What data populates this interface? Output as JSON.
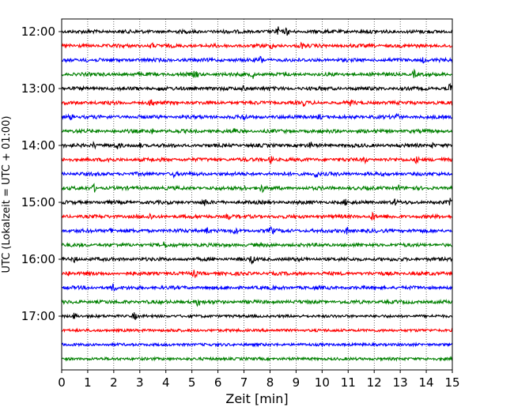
{
  "chart_data": {
    "type": "line",
    "title": "",
    "xlabel": "Zeit  [min]",
    "ylabel": "UTC (Lokalzeit = UTC + 01:00)",
    "xlim": [
      0,
      15
    ],
    "x_ticks": [
      "0",
      "1",
      "2",
      "3",
      "4",
      "5",
      "6",
      "7",
      "8",
      "9",
      "10",
      "11",
      "12",
      "13",
      "14",
      "15"
    ],
    "y_tick_labels": [
      "12:00",
      "13:00",
      "14:00",
      "15:00",
      "16:00",
      "17:00"
    ],
    "grid": "vertical dotted",
    "trace_interval_min": 15,
    "colors": [
      "#000000",
      "#ff0000",
      "#0000ff",
      "#008000"
    ],
    "series": [
      {
        "start": "12:00",
        "color": "#000000",
        "events": [
          [
            8.3,
            5
          ],
          [
            8.65,
            4
          ]
        ]
      },
      {
        "start": "12:15",
        "color": "#ff0000",
        "events": [
          [
            3.45,
            3
          ],
          [
            8.1,
            2.5
          ],
          [
            9.2,
            3
          ]
        ]
      },
      {
        "start": "12:30",
        "color": "#0000ff",
        "events": [
          [
            0.9,
            3
          ],
          [
            7.65,
            4
          ],
          [
            13.9,
            3
          ]
        ]
      },
      {
        "start": "12:45",
        "color": "#008000",
        "events": [
          [
            5.15,
            5
          ],
          [
            7.35,
            4
          ],
          [
            13.55,
            4
          ]
        ]
      },
      {
        "start": "13:00",
        "color": "#000000",
        "events": [
          [
            3.8,
            3
          ],
          [
            7.0,
            3
          ],
          [
            14.9,
            5
          ]
        ]
      },
      {
        "start": "13:15",
        "color": "#ff0000",
        "events": [
          [
            3.45,
            5
          ],
          [
            9.3,
            3
          ],
          [
            11.1,
            3
          ]
        ]
      },
      {
        "start": "13:30",
        "color": "#0000ff",
        "events": [
          [
            0.35,
            4
          ],
          [
            7.0,
            4
          ],
          [
            9.9,
            3
          ],
          [
            12.85,
            4
          ]
        ]
      },
      {
        "start": "13:45",
        "color": "#008000",
        "events": [
          [
            3.45,
            3
          ],
          [
            6.65,
            3
          ]
        ]
      },
      {
        "start": "14:00",
        "color": "#000000",
        "events": [
          [
            1.25,
            4
          ],
          [
            2.15,
            4
          ],
          [
            3.0,
            3
          ],
          [
            9.55,
            3
          ],
          [
            14.25,
            3
          ]
        ]
      },
      {
        "start": "14:15",
        "color": "#ff0000",
        "events": [
          [
            1.8,
            3
          ],
          [
            8.05,
            5
          ],
          [
            11.65,
            4
          ],
          [
            13.65,
            5
          ]
        ]
      },
      {
        "start": "14:30",
        "color": "#0000ff",
        "events": [
          [
            4.3,
            3
          ],
          [
            9.75,
            5
          ]
        ]
      },
      {
        "start": "14:45",
        "color": "#008000",
        "events": [
          [
            1.25,
            4
          ],
          [
            7.0,
            3
          ],
          [
            7.7,
            4
          ],
          [
            12.95,
            3
          ]
        ]
      },
      {
        "start": "15:00",
        "color": "#000000",
        "events": [
          [
            5.5,
            4
          ],
          [
            10.9,
            3
          ],
          [
            12.8,
            3
          ],
          [
            14.95,
            5
          ]
        ]
      },
      {
        "start": "15:15",
        "color": "#ff0000",
        "events": [
          [
            3.4,
            3
          ],
          [
            6.4,
            3
          ],
          [
            11.95,
            5
          ]
        ]
      },
      {
        "start": "15:30",
        "color": "#0000ff",
        "events": [
          [
            1.9,
            4
          ],
          [
            5.6,
            4
          ],
          [
            6.65,
            3
          ],
          [
            8.05,
            5
          ],
          [
            10.95,
            4
          ]
        ]
      },
      {
        "start": "15:45",
        "color": "#008000",
        "events": [
          [
            3.95,
            3
          ]
        ]
      },
      {
        "start": "16:00",
        "color": "#000000",
        "events": [
          [
            0.5,
            4
          ],
          [
            7.3,
            5
          ]
        ]
      },
      {
        "start": "16:15",
        "color": "#ff0000",
        "events": [
          [
            0.25,
            3
          ],
          [
            5.1,
            4
          ]
        ]
      },
      {
        "start": "16:30",
        "color": "#0000ff",
        "events": [
          [
            2.0,
            5
          ]
        ]
      },
      {
        "start": "16:45",
        "color": "#008000",
        "events": [
          [
            5.25,
            5
          ]
        ]
      },
      {
        "start": "17:00",
        "color": "#000000",
        "events": [
          [
            0.5,
            4
          ],
          [
            2.8,
            4
          ]
        ]
      },
      {
        "start": "17:15",
        "color": "#ff0000",
        "events": [
          [
            4.3,
            2
          ]
        ]
      },
      {
        "start": "17:30",
        "color": "#0000ff",
        "events": []
      },
      {
        "start": "17:45",
        "color": "#008000",
        "events": []
      }
    ]
  }
}
